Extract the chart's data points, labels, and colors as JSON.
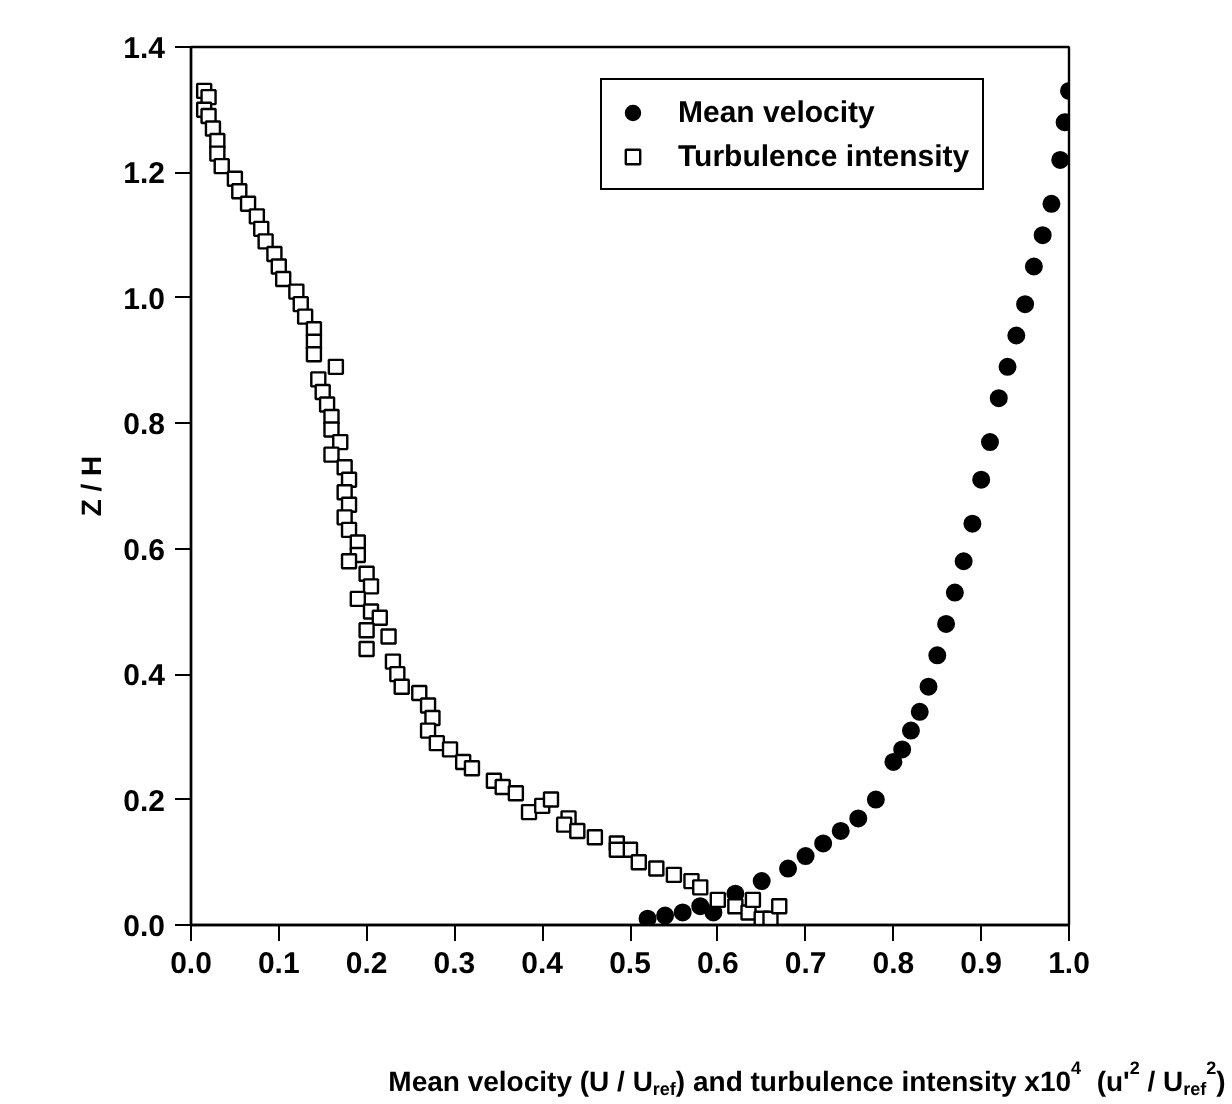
{
  "chart_data": {
    "type": "scatter",
    "xlabel": "Mean velocity (U / U$_{ref}$) and turbulence intensity x10$^{4}$  (u'$^{2}$ / U$_{ref}$$^{2}$)",
    "ylabel": "Z / H",
    "xlim": [
      0,
      1.0
    ],
    "ylim": [
      0,
      1.4
    ],
    "xticks": [
      {
        "value": 0,
        "label": "0.0"
      },
      0.1,
      0.2,
      0.3,
      0.4,
      0.5,
      0.6,
      0.7,
      0.8,
      0.9,
      {
        "value": 1.0,
        "label": "1.0"
      }
    ],
    "yticks": [
      {
        "value": 0,
        "label": "0.0"
      },
      0.2,
      0.4,
      0.6,
      0.8,
      {
        "value": 1.0,
        "label": "1.0"
      },
      1.2,
      1.4
    ],
    "grid": false,
    "legend": "top right",
    "series": [
      {
        "name": "Mean velocity",
        "color": "#000000",
        "marker": "circle",
        "x": [
          0.52,
          0.54,
          0.56,
          0.58,
          0.595,
          0.62,
          0.65,
          0.68,
          0.7,
          0.72,
          0.74,
          0.76,
          0.78,
          0.8,
          0.81,
          0.82,
          0.83,
          0.84,
          0.85,
          0.86,
          0.87,
          0.88,
          0.89,
          0.9,
          0.91,
          0.92,
          0.93,
          0.94,
          0.95,
          0.96,
          0.97,
          0.98,
          0.99,
          0.995,
          1.0
        ],
        "values": [
          0.01,
          0.015,
          0.02,
          0.03,
          0.02,
          0.05,
          0.07,
          0.09,
          0.11,
          0.13,
          0.15,
          0.17,
          0.2,
          0.26,
          0.28,
          0.31,
          0.34,
          0.38,
          0.43,
          0.48,
          0.53,
          0.58,
          0.64,
          0.71,
          0.77,
          0.84,
          0.89,
          0.94,
          0.99,
          1.05,
          1.1,
          1.15,
          1.22,
          1.28,
          1.33
        ]
      },
      {
        "name": "Turbulence intensity",
        "color": "#000000",
        "marker": "square",
        "x": [
          0.015,
          0.02,
          0.015,
          0.02,
          0.025,
          0.03,
          0.03,
          0.035,
          0.05,
          0.055,
          0.065,
          0.075,
          0.08,
          0.085,
          0.095,
          0.1,
          0.105,
          0.12,
          0.125,
          0.13,
          0.14,
          0.14,
          0.14,
          0.165,
          0.145,
          0.15,
          0.155,
          0.16,
          0.16,
          0.17,
          0.16,
          0.175,
          0.18,
          0.175,
          0.18,
          0.175,
          0.18,
          0.19,
          0.19,
          0.18,
          0.2,
          0.205,
          0.19,
          0.205,
          0.215,
          0.2,
          0.225,
          0.2,
          0.23,
          0.235,
          0.24,
          0.26,
          0.27,
          0.275,
          0.27,
          0.28,
          0.295,
          0.31,
          0.32,
          0.345,
          0.355,
          0.37,
          0.385,
          0.4,
          0.41,
          0.43,
          0.425,
          0.44,
          0.46,
          0.485,
          0.5,
          0.485,
          0.51,
          0.53,
          0.55,
          0.57,
          0.58,
          0.6,
          0.62,
          0.635,
          0.65,
          0.66,
          0.67,
          0.64
        ],
        "values": [
          1.33,
          1.32,
          1.3,
          1.29,
          1.27,
          1.25,
          1.23,
          1.21,
          1.19,
          1.17,
          1.15,
          1.13,
          1.11,
          1.09,
          1.07,
          1.05,
          1.03,
          1.01,
          0.99,
          0.97,
          0.95,
          0.93,
          0.91,
          0.89,
          0.87,
          0.85,
          0.83,
          0.81,
          0.79,
          0.77,
          0.75,
          0.73,
          0.71,
          0.69,
          0.67,
          0.65,
          0.63,
          0.61,
          0.59,
          0.58,
          0.56,
          0.54,
          0.52,
          0.5,
          0.49,
          0.47,
          0.46,
          0.44,
          0.42,
          0.4,
          0.38,
          0.37,
          0.35,
          0.33,
          0.31,
          0.29,
          0.28,
          0.26,
          0.25,
          0.23,
          0.22,
          0.21,
          0.18,
          0.19,
          0.2,
          0.17,
          0.16,
          0.15,
          0.14,
          0.13,
          0.12,
          0.12,
          0.1,
          0.09,
          0.08,
          0.07,
          0.06,
          0.04,
          0.03,
          0.02,
          0.01,
          0.01,
          0.03,
          0.04
        ]
      }
    ]
  }
}
